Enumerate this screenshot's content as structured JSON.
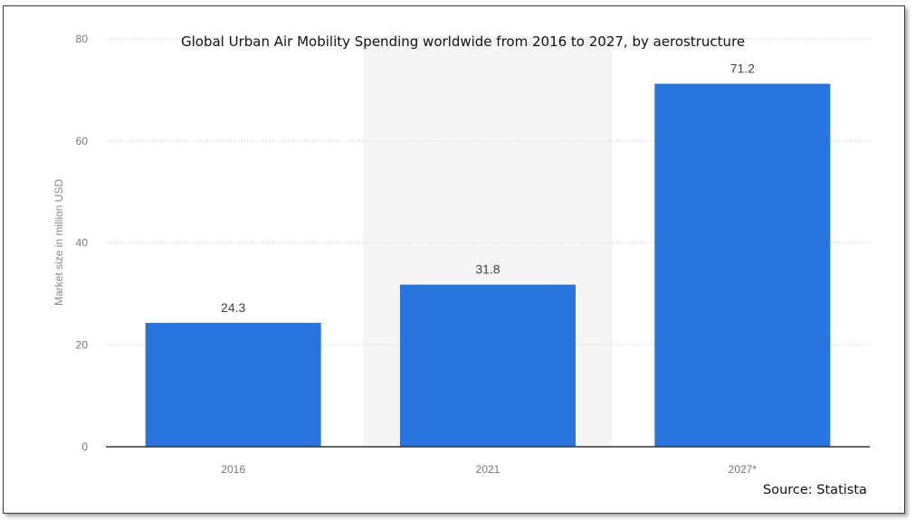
{
  "chart_data": {
    "type": "bar",
    "title": "Global Urban Air Mobility Spending worldwide from 2016 to 2027, by aerostructure",
    "xlabel": "",
    "ylabel": "Market size in million USD",
    "categories": [
      "2016",
      "2021",
      "2027*"
    ],
    "values": [
      24.3,
      31.8,
      71.2
    ],
    "value_labels": [
      "24.3",
      "31.8",
      "71.2"
    ],
    "ylim": [
      0,
      80
    ],
    "yticks": [
      "0",
      "20",
      "40",
      "60",
      "80"
    ],
    "grid": true,
    "bar_color": "#2876dd",
    "highlight_band_color": "#f5f5f5"
  },
  "footer": {
    "source": "Source: Statista"
  }
}
